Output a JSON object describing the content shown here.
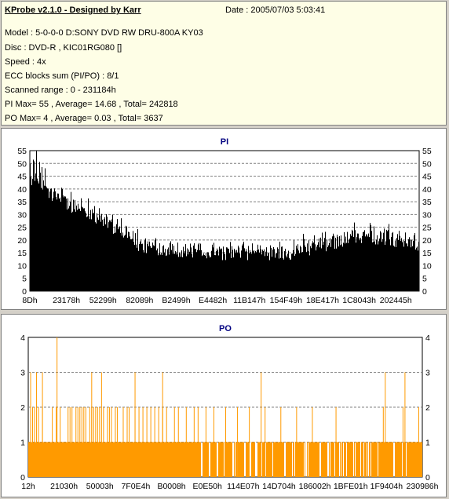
{
  "info": {
    "title": "KProbe v2.1.0 - Designed by Karr",
    "date": "Date : 2005/07/03 5:03:41",
    "lines": [
      "Model : 5-0-0-0 D:SONY    DVD RW DRU-800A  KY03",
      "Disc : DVD-R , KIC01RG080   []",
      "Speed : 4x",
      "ECC blocks sum (PI/PO) : 8/1",
      "Scanned range : 0 - 231184h",
      "PI Max= 55 , Average= 14.68 , Total= 242818",
      "PO Max= 4 , Average= 0.03 , Total= 3637"
    ]
  },
  "colors": {
    "pi_bar": "#000000",
    "po_bar": "#ff9a00",
    "plot_bg": "#ffffff",
    "panel_bg": "#d4d0c8",
    "info_bg": "#fefee6",
    "title_color": "#000080",
    "grid": "#808080"
  },
  "chart_data": [
    {
      "type": "bar",
      "title": "PI",
      "xlabel": "",
      "ylabel": "",
      "ylim": [
        0,
        55
      ],
      "yticks": [
        0,
        5,
        10,
        15,
        20,
        25,
        30,
        35,
        40,
        45,
        50,
        55
      ],
      "xlim": [
        0,
        231184
      ],
      "xtick_labels": [
        "8Dh",
        "23178h",
        "52299h",
        "82089h",
        "B2499h",
        "E4482h",
        "11B147h",
        "154F49h",
        "18E417h",
        "1C8043h",
        "202445h"
      ],
      "grid": true,
      "profile": {
        "x_fraction": [
          0.0,
          0.02,
          0.05,
          0.1,
          0.15,
          0.2,
          0.25,
          0.28,
          0.33,
          0.4,
          0.5,
          0.6,
          0.66,
          0.72,
          0.8,
          0.86,
          0.9,
          0.95,
          1.0
        ],
        "typical_y": [
          44,
          43,
          38,
          34,
          31,
          26,
          23,
          18,
          17,
          16,
          15,
          15,
          15,
          17,
          20,
          22,
          21,
          20,
          17
        ],
        "peak_y": [
          55,
          53,
          46,
          42,
          37,
          33,
          29,
          25,
          22,
          21,
          20,
          20,
          21,
          24,
          26,
          28,
          26,
          27,
          24
        ]
      },
      "max": 55,
      "average": 14.68,
      "total": 242818
    },
    {
      "type": "bar",
      "title": "PO",
      "xlabel": "",
      "ylabel": "",
      "ylim": [
        0,
        4
      ],
      "yticks": [
        0,
        1,
        2,
        3,
        4
      ],
      "xlim": [
        0,
        231184
      ],
      "xtick_labels": [
        "12h",
        "21030h",
        "50003h",
        "7F0E4h",
        "B0008h",
        "E0E50h",
        "114E07h",
        "14D704h",
        "186002h",
        "1BFE01h",
        "1F9404h",
        "230986h"
      ],
      "grid": true,
      "baseline_value": 1,
      "spikes_value_2_fraction": [
        0.01,
        0.015,
        0.025,
        0.035,
        0.06,
        0.07,
        0.08,
        0.1,
        0.105,
        0.11,
        0.12,
        0.125,
        0.13,
        0.135,
        0.14,
        0.145,
        0.155,
        0.16,
        0.165,
        0.17,
        0.175,
        0.18,
        0.19,
        0.2,
        0.205,
        0.21,
        0.22,
        0.225,
        0.24,
        0.25,
        0.255,
        0.27,
        0.28,
        0.29,
        0.3,
        0.31,
        0.32,
        0.33,
        0.34,
        0.35,
        0.37,
        0.38,
        0.4,
        0.42,
        0.43,
        0.45,
        0.47,
        0.5,
        0.53,
        0.56,
        0.6,
        0.64,
        0.68,
        0.72,
        0.78,
        0.9,
        0.95,
        0.99
      ],
      "spikes_value_3_fraction": [
        0.005,
        0.02,
        0.035,
        0.16,
        0.185,
        0.27,
        0.34,
        0.59,
        0.905,
        0.955
      ],
      "spikes_value_4_fraction": [
        0.072
      ],
      "gap_fraction": [
        0.44,
        0.46,
        0.48,
        0.52,
        0.55,
        0.58,
        0.62,
        0.65,
        0.67,
        0.7,
        0.74,
        0.76,
        0.8,
        0.83,
        0.87,
        0.93
      ],
      "max": 4,
      "average": 0.03,
      "total": 3637
    }
  ]
}
